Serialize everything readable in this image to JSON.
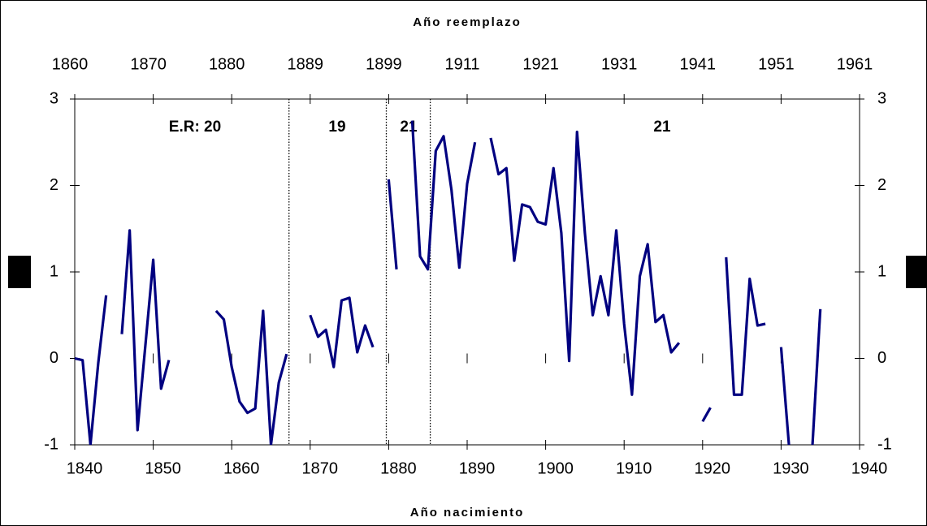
{
  "chart_data": {
    "type": "line",
    "x_title_top": "Año reemplazo",
    "x_title": "Año nacimiento",
    "annotations": [
      "E.R: 20",
      "19",
      "21",
      "21"
    ],
    "vlines": [
      1867.3,
      1879.7,
      1885.3
    ],
    "x": [
      1840,
      1841,
      1842,
      1843,
      1844,
      1845,
      1846,
      1847,
      1848,
      1849,
      1850,
      1851,
      1852,
      1853,
      1854,
      1855,
      1856,
      1857,
      1858,
      1859,
      1860,
      1861,
      1862,
      1863,
      1864,
      1865,
      1866,
      1867,
      1868,
      1869,
      1870,
      1871,
      1872,
      1873,
      1874,
      1875,
      1876,
      1877,
      1878,
      1879,
      1880,
      1881,
      1882,
      1883,
      1884,
      1885,
      1886,
      1887,
      1888,
      1889,
      1890,
      1891,
      1892,
      1893,
      1894,
      1895,
      1896,
      1897,
      1898,
      1899,
      1900,
      1901,
      1902,
      1903,
      1904,
      1905,
      1906,
      1907,
      1908,
      1909,
      1910,
      1911,
      1912,
      1913,
      1914,
      1915,
      1916,
      1917,
      1918,
      1919,
      1920,
      1921,
      1922,
      1923,
      1924,
      1925,
      1926,
      1927,
      1928,
      1929,
      1930,
      1931,
      1932,
      1933,
      1934,
      1935
    ],
    "series": [
      {
        "color": "#000080",
        "values": [
          0,
          -0.02,
          -1.0,
          -0.05,
          0.73,
          null,
          0.28,
          1.48,
          -0.83,
          0.15,
          1.14,
          -0.35,
          -0.02,
          null,
          null,
          null,
          null,
          null,
          0.55,
          0.45,
          -0.1,
          -0.5,
          -0.63,
          -0.58,
          0.55,
          -1.0,
          -0.28,
          0.05,
          null,
          null,
          0.5,
          0.25,
          0.33,
          -0.1,
          0.67,
          0.7,
          0.07,
          0.38,
          0.13,
          null,
          2.07,
          1.03,
          null,
          2.75,
          1.18,
          1.03,
          2.4,
          2.57,
          1.95,
          1.05,
          2.02,
          2.5,
          null,
          2.55,
          2.13,
          2.2,
          1.13,
          1.78,
          1.75,
          1.58,
          1.55,
          2.2,
          1.45,
          -0.03,
          2.62,
          1.45,
          0.5,
          0.95,
          0.5,
          1.48,
          0.4,
          -0.42,
          0.95,
          1.32,
          0.42,
          0.5,
          0.07,
          0.18,
          null,
          null,
          -0.73,
          -0.57,
          null,
          1.17,
          -0.42,
          -0.42,
          0.92,
          0.38,
          0.4,
          null,
          0.13,
          -1.0,
          null,
          null,
          -1.0,
          0.57
        ]
      }
    ],
    "xlim": [
      1840,
      1940
    ],
    "xticks": [
      1840,
      1850,
      1860,
      1870,
      1880,
      1890,
      1900,
      1910,
      1920,
      1930,
      1940
    ],
    "xticks_top": [
      {
        "value": 1840,
        "label": "1860"
      },
      {
        "value": 1850,
        "label": "1870"
      },
      {
        "value": 1860,
        "label": "1880"
      },
      {
        "value": 1870,
        "label": "1889"
      },
      {
        "value": 1880,
        "label": "1899"
      },
      {
        "value": 1890,
        "label": "1911"
      },
      {
        "value": 1900,
        "label": "1921"
      },
      {
        "value": 1910,
        "label": "1931"
      },
      {
        "value": 1920,
        "label": "1941"
      },
      {
        "value": 1930,
        "label": "1951"
      },
      {
        "value": 1940,
        "label": "1961"
      }
    ],
    "ylim": [
      -1,
      3
    ],
    "yticks": [
      -1,
      0,
      1,
      2,
      3
    ],
    "y2lim": [
      -1,
      3
    ],
    "y2ticks": [
      -1,
      0,
      1,
      2,
      3
    ]
  }
}
